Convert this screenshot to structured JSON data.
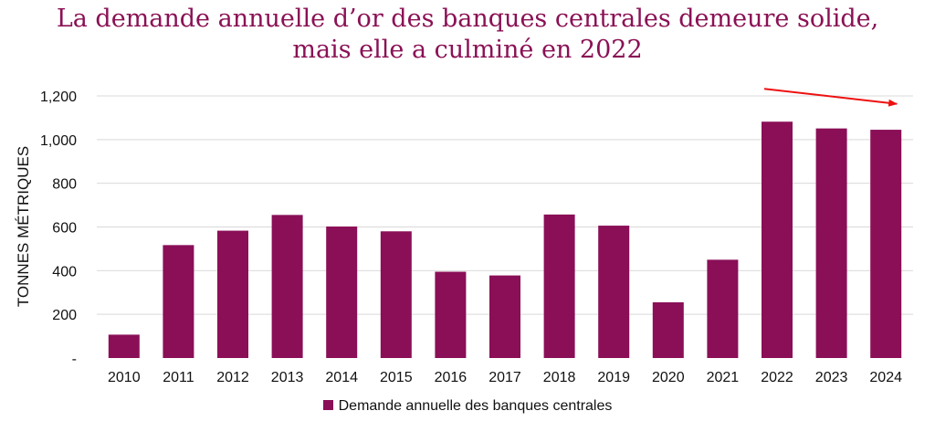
{
  "title": {
    "line1": "La demande annuelle d’or des banques centrales demeure solide,",
    "line2": "mais elle a culminé en 2022"
  },
  "colors": {
    "bar": "#8a0f57",
    "grid": "#d9d9d9",
    "arrow": "#ee1111"
  },
  "chart_data": {
    "type": "bar",
    "title": "La demande annuelle d’or des banques centrales demeure solide, mais elle a culminé en 2022",
    "xlabel": "",
    "ylabel": "TONNES MÉTRIQUES",
    "categories": [
      "2010",
      "2011",
      "2012",
      "2013",
      "2014",
      "2015",
      "2016",
      "2017",
      "2018",
      "2019",
      "2020",
      "2021",
      "2022",
      "2023",
      "2024"
    ],
    "series": [
      {
        "name": "Demande annuelle des banques centrales",
        "values": [
          107,
          517,
          583,
          655,
          602,
          580,
          395,
          378,
          657,
          606,
          255,
          450,
          1082,
          1051,
          1045
        ]
      }
    ],
    "ylim": [
      0,
      1200
    ],
    "yticks": [
      0,
      200,
      400,
      600,
      800,
      1000,
      1200
    ],
    "ytick_labels": [
      "-",
      "200",
      "400",
      "600",
      "800",
      "1,000",
      "1,200"
    ],
    "grid": true,
    "legend_position": "bottom",
    "annotations": [
      {
        "type": "arrow",
        "description": "declining trend from 2022 to 2024",
        "from_year": "2022",
        "to_year": "2024"
      }
    ]
  }
}
